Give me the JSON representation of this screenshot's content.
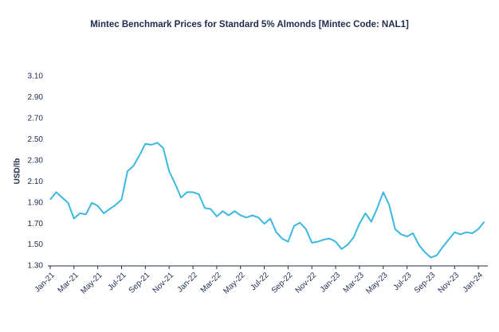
{
  "chart_data": {
    "type": "line",
    "title": "Mintec Benchmark Prices for Standard 5% Almonds [Mintec Code: NAL1]",
    "y_label": "USD/lb",
    "categories": [
      "Jan-21",
      null,
      null,
      null,
      "Mar-21",
      null,
      null,
      null,
      "May-21",
      null,
      null,
      null,
      "Jul-21",
      null,
      null,
      null,
      "Sep-21",
      null,
      null,
      null,
      "Nov-21",
      null,
      null,
      null,
      "Jan-22",
      null,
      null,
      null,
      "Mar-22",
      null,
      null,
      null,
      "May-22",
      null,
      null,
      null,
      "Jul-22",
      null,
      null,
      null,
      "Sep-22",
      null,
      null,
      null,
      "Nov-22",
      null,
      null,
      null,
      "Jan-23",
      null,
      null,
      null,
      "Mar-23",
      null,
      null,
      null,
      "May-23",
      null,
      null,
      null,
      "Jul-23",
      null,
      null,
      null,
      "Sep-23",
      null,
      null,
      null,
      "Nov-23",
      null,
      null,
      null,
      "Jan-24",
      null
    ],
    "series": [
      {
        "name": "NAL1",
        "color": "#3bb8e0",
        "values": [
          1.93,
          2.0,
          1.95,
          1.9,
          1.75,
          1.8,
          1.79,
          1.9,
          1.87,
          1.8,
          1.84,
          1.88,
          1.93,
          2.2,
          2.25,
          2.35,
          2.46,
          2.45,
          2.47,
          2.42,
          2.2,
          2.08,
          1.95,
          2.0,
          2.0,
          1.98,
          1.85,
          1.84,
          1.77,
          1.82,
          1.78,
          1.82,
          1.78,
          1.76,
          1.78,
          1.76,
          1.7,
          1.75,
          1.62,
          1.56,
          1.53,
          1.68,
          1.71,
          1.65,
          1.52,
          1.53,
          1.55,
          1.56,
          1.53,
          1.46,
          1.5,
          1.57,
          1.7,
          1.8,
          1.72,
          1.85,
          2.0,
          1.88,
          1.65,
          1.6,
          1.58,
          1.61,
          1.5,
          1.43,
          1.38,
          1.4,
          1.48,
          1.55,
          1.62,
          1.6,
          1.62,
          1.61,
          1.65,
          1.72
        ]
      }
    ],
    "ylim": [
      1.3,
      3.1
    ],
    "yticks": [
      {
        "value": 1.3,
        "label": "1.30"
      },
      {
        "value": 1.5,
        "label": "1.50"
      },
      {
        "value": 1.7,
        "label": "1.70"
      },
      {
        "value": 1.9,
        "label": "1.90"
      },
      {
        "value": 2.1,
        "label": "2.10"
      },
      {
        "value": 2.3,
        "label": "2.30"
      },
      {
        "value": 2.5,
        "label": "2.50"
      },
      {
        "value": 2.7,
        "label": "2.70"
      },
      {
        "value": 2.9,
        "label": "2.90"
      },
      {
        "value": 3.1,
        "label": "3.10"
      }
    ],
    "grid": false
  }
}
